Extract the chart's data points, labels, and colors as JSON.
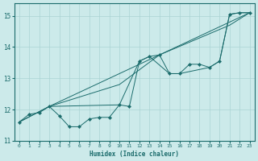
{
  "xlabel": "Humidex (Indice chaleur)",
  "bg_color": "#cceaea",
  "line_color": "#1a6b6b",
  "grid_color": "#aad4d4",
  "xlim": [
    -0.5,
    23.5
  ],
  "ylim": [
    11.0,
    15.4
  ],
  "yticks": [
    11,
    12,
    13,
    14,
    15
  ],
  "xticks": [
    0,
    1,
    2,
    3,
    4,
    5,
    6,
    7,
    8,
    9,
    10,
    11,
    12,
    13,
    14,
    15,
    16,
    17,
    18,
    19,
    20,
    21,
    22,
    23
  ],
  "series": [
    {
      "x": [
        0,
        1,
        2,
        3,
        4,
        5,
        6,
        7,
        8,
        9,
        10,
        11,
        12,
        13,
        14,
        15,
        16,
        17,
        18,
        19,
        20,
        21,
        22,
        23
      ],
      "y": [
        11.6,
        11.85,
        11.9,
        12.1,
        11.8,
        11.45,
        11.45,
        11.7,
        11.75,
        11.75,
        12.15,
        12.1,
        13.55,
        13.7,
        13.75,
        13.15,
        13.15,
        13.45,
        13.45,
        13.35,
        13.55,
        15.05,
        15.1,
        15.1
      ],
      "markers": true
    },
    {
      "comment": "upper straight diagonal - from (0,11.6) to (23,15.1) through (3,12.1)",
      "x": [
        0,
        3,
        23
      ],
      "y": [
        11.6,
        12.1,
        15.1
      ],
      "markers": false
    },
    {
      "comment": "middle diagonal - through (3,12.1), (10,12.8), (14,13.75), (21,14.7), (23,15.1)",
      "x": [
        0,
        3,
        10,
        14,
        21,
        23
      ],
      "y": [
        11.6,
        12.1,
        12.8,
        13.75,
        14.7,
        15.1
      ],
      "markers": false
    },
    {
      "x": [
        3,
        10,
        12,
        13,
        15,
        16,
        19,
        20,
        21,
        22,
        23
      ],
      "y": [
        12.1,
        12.15,
        13.55,
        13.7,
        13.15,
        13.15,
        13.35,
        13.55,
        15.05,
        15.1,
        15.1
      ],
      "markers": false
    }
  ]
}
